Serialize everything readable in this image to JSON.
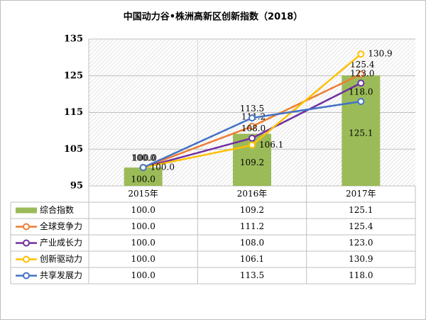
{
  "chart_data": {
    "type": "combo",
    "title": "中国动力谷•株洲高新区创新指数（2018）",
    "categories": [
      "2015年",
      "2016年",
      "2017年"
    ],
    "ylim": [
      95,
      135
    ],
    "yticks": [
      95,
      105,
      115,
      125,
      135
    ],
    "grid": true,
    "series": [
      {
        "name": "综合指数",
        "type": "bar",
        "color": "#9bbb59",
        "values": [
          100.0,
          109.2,
          125.1
        ],
        "value_labels": [
          "100.0",
          "109.2",
          "125.1"
        ]
      },
      {
        "name": "全球竞争力",
        "type": "line",
        "color": "#ed7d31",
        "values": [
          100.0,
          111.2,
          125.4
        ],
        "value_labels": [
          "100.0",
          "111.2",
          "125.4"
        ]
      },
      {
        "name": "产业成长力",
        "type": "line",
        "color": "#7030a0",
        "values": [
          100.0,
          108.0,
          123.0
        ],
        "value_labels": [
          "100.0",
          "108.0",
          "123.0"
        ]
      },
      {
        "name": "创新驱动力",
        "type": "line",
        "color": "#ffc000",
        "values": [
          100.0,
          106.1,
          130.9
        ],
        "value_labels": [
          "100.0",
          "106.1",
          "130.9"
        ]
      },
      {
        "name": "共享发展力",
        "type": "line",
        "color": "#4472c4",
        "values": [
          100.0,
          113.5,
          118.0
        ],
        "value_labels": [
          "100.0",
          "113.5",
          "118.0"
        ]
      }
    ]
  }
}
